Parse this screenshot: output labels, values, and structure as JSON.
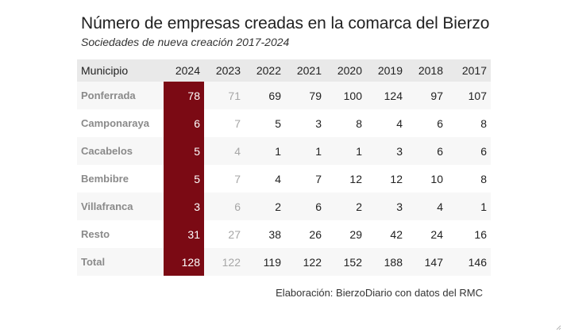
{
  "title": "Número de empresas creadas en la comarca del Bierzo",
  "subtitle": "Sociedades de nueva creación 2017-2024",
  "table": {
    "headers": [
      "Municipio",
      "2024",
      "2023",
      "2022",
      "2021",
      "2020",
      "2019",
      "2018",
      "2017"
    ],
    "rows": [
      [
        "Ponferrada",
        "78",
        "71",
        "69",
        "79",
        "100",
        "124",
        "97",
        "107"
      ],
      [
        "Camponaraya",
        "6",
        "7",
        "5",
        "3",
        "8",
        "4",
        "6",
        "8"
      ],
      [
        "Cacabelos",
        "5",
        "4",
        "1",
        "1",
        "1",
        "3",
        "6",
        "6"
      ],
      [
        "Bembibre",
        "5",
        "7",
        "4",
        "7",
        "12",
        "12",
        "10",
        "8"
      ],
      [
        "Villafranca",
        "3",
        "6",
        "2",
        "6",
        "2",
        "3",
        "4",
        "1"
      ],
      [
        "Resto",
        "31",
        "27",
        "38",
        "26",
        "29",
        "42",
        "24",
        "16"
      ],
      [
        "Total",
        "128",
        "122",
        "119",
        "122",
        "152",
        "188",
        "147",
        "146"
      ]
    ]
  },
  "source": "Elaboración: BierzoDiario con datos del RMC",
  "colors": {
    "highlight": "#7b0a14",
    "header_bg": "#e9e9e9",
    "alt_row_bg": "#f7f7f7",
    "muted_text": "#a6a6a6"
  },
  "icons": {
    "resize": "resize-grip-icon"
  }
}
